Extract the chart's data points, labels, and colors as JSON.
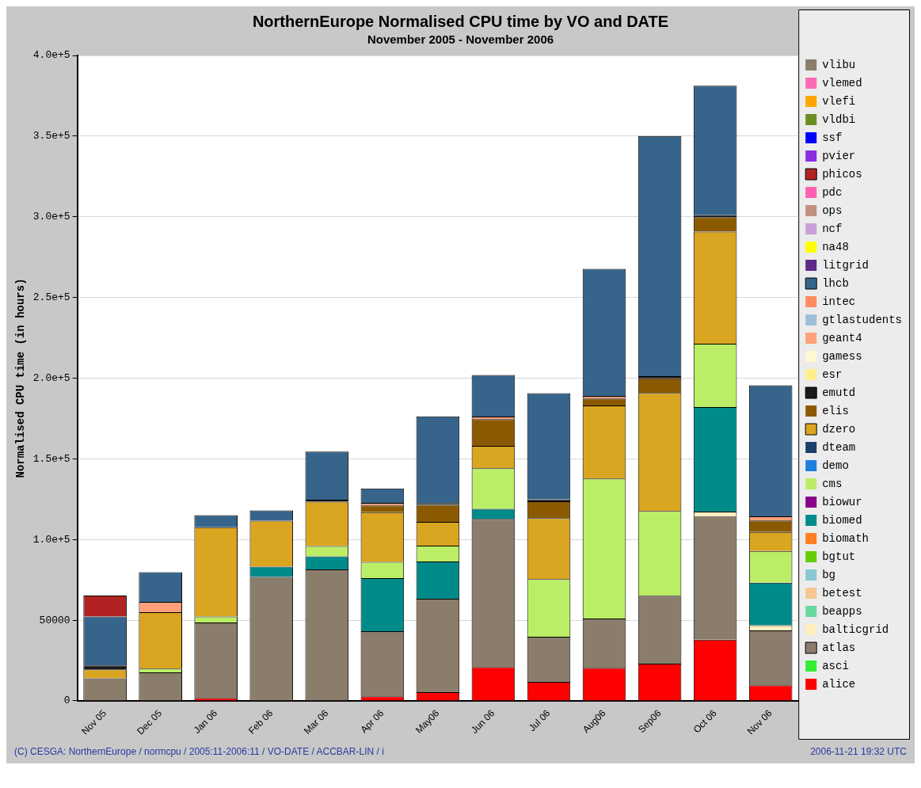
{
  "chart_data": {
    "type": "bar",
    "stacked": true,
    "title": "NorthernEurope Normalised CPU time by VO and DATE",
    "subtitle": "November 2005 - November 2006",
    "ylabel": "Normalised CPU time (in hours)",
    "categories": [
      "Nov 05",
      "Dec 05",
      "Jan 06",
      "Feb 06",
      "Mar 06",
      "Apr 06",
      "May06",
      "Jun 06",
      "Jul 06",
      "Aug06",
      "Sep06",
      "Oct 06",
      "Nov 06"
    ],
    "ylim": [
      0,
      400000
    ],
    "yticks": [
      0,
      50000,
      {
        "value": 100000,
        "label": "1.0e+5"
      },
      {
        "value": 150000,
        "label": "1.5e+5"
      },
      {
        "value": 200000,
        "label": "2.0e+5"
      },
      {
        "value": 250000,
        "label": "2.5e+5"
      },
      {
        "value": 300000,
        "label": "3.0e+5"
      },
      {
        "value": 350000,
        "label": "3.5e+5"
      },
      {
        "value": 400000,
        "label": "4.0e+5"
      }
    ],
    "grid": "y",
    "legend": "right",
    "annotations": [
      "(C) CESGA: NorthernEurope / normcpu / 2005:11-2006:11 / VO-DATE / ACCBAR-LIN / i",
      "2006-11-21 19:32 UTC"
    ],
    "series": [
      {
        "name": "alice",
        "color": "#ff0000",
        "values": [
          0,
          0,
          1800,
          0,
          0,
          2800,
          5400,
          21000,
          11700,
          20400,
          23000,
          37900,
          9700
        ]
      },
      {
        "name": "asci",
        "color": "#33ee33",
        "values": [
          0,
          0,
          0,
          0,
          0,
          0,
          0,
          0,
          0,
          0,
          0,
          0,
          0
        ]
      },
      {
        "name": "atlas",
        "color": "#8b7d6b",
        "values": [
          14000,
          17600,
          46700,
          76800,
          81500,
          40400,
          57900,
          91700,
          28000,
          30600,
          42100,
          76300,
          34000
        ]
      },
      {
        "name": "balticgrid",
        "color": "#ffefc0",
        "values": [
          0,
          0,
          0,
          0,
          0,
          0,
          0,
          0,
          0,
          0,
          0,
          3100,
          3100
        ]
      },
      {
        "name": "beapps",
        "color": "#66d9a0",
        "values": [
          0,
          0,
          0,
          0,
          0,
          0,
          0,
          0,
          0,
          0,
          0,
          0,
          0
        ]
      },
      {
        "name": "betest",
        "color": "#f5c890",
        "values": [
          0,
          0,
          0,
          0,
          0,
          0,
          0,
          0,
          0,
          0,
          0,
          0,
          0
        ]
      },
      {
        "name": "bg",
        "color": "#88c8d0",
        "values": [
          0,
          0,
          0,
          0,
          0,
          0,
          0,
          0,
          0,
          0,
          0,
          0,
          0
        ]
      },
      {
        "name": "bgtut",
        "color": "#66cc00",
        "values": [
          0,
          0,
          0,
          0,
          0,
          0,
          0,
          0,
          0,
          0,
          0,
          0,
          0
        ]
      },
      {
        "name": "biomath",
        "color": "#ff7f20",
        "values": [
          0,
          0,
          0,
          0,
          0,
          0,
          0,
          0,
          0,
          0,
          0,
          0,
          0
        ]
      },
      {
        "name": "biomed",
        "color": "#008b8b",
        "values": [
          0,
          0,
          0,
          6400,
          8000,
          32900,
          23100,
          6300,
          0,
          0,
          0,
          64800,
          26400
        ]
      },
      {
        "name": "biowur",
        "color": "#8b008b",
        "values": [
          0,
          0,
          0,
          0,
          0,
          0,
          0,
          0,
          0,
          0,
          0,
          0,
          0
        ]
      },
      {
        "name": "cms",
        "color": "#bbee66",
        "values": [
          0,
          2400,
          3800,
          0,
          6400,
          10000,
          9800,
          25200,
          35700,
          86800,
          52500,
          39200,
          19600
        ]
      },
      {
        "name": "demo",
        "color": "#1e7fdf",
        "values": [
          0,
          0,
          0,
          0,
          0,
          0,
          0,
          0,
          0,
          0,
          0,
          0,
          0
        ]
      },
      {
        "name": "dteam",
        "color": "#1a3f6a",
        "values": [
          0,
          0,
          0,
          0,
          0,
          0,
          0,
          0,
          0,
          0,
          0,
          0,
          0
        ]
      },
      {
        "name": "dzero",
        "color": "#daa520",
        "values": [
          5500,
          34900,
          55300,
          28400,
          27500,
          30800,
          14700,
          13800,
          37800,
          45200,
          73200,
          69500,
          11800
        ]
      },
      {
        "name": "elis",
        "color": "#8b5a00",
        "values": [
          0,
          0,
          0,
          0,
          0,
          4200,
          10500,
          16600,
          10500,
          4400,
          9100,
          8900,
          7100
        ]
      },
      {
        "name": "emutd",
        "color": "#1a1a1a",
        "values": [
          2400,
          0,
          0,
          0,
          1300,
          0,
          1200,
          0,
          1200,
          0,
          1300,
          1300,
          0
        ]
      },
      {
        "name": "esr",
        "color": "#ffef8a",
        "values": [
          0,
          0,
          0,
          0,
          0,
          0,
          0,
          0,
          0,
          0,
          0,
          0,
          0
        ]
      },
      {
        "name": "gamess",
        "color": "#fff8d0",
        "values": [
          0,
          0,
          0,
          0,
          0,
          0,
          0,
          0,
          0,
          0,
          0,
          0,
          0
        ]
      },
      {
        "name": "geant4",
        "color": "#ffa07a",
        "values": [
          0,
          6400,
          0,
          0,
          0,
          1600,
          0,
          1600,
          0,
          1600,
          0,
          0,
          2600
        ]
      },
      {
        "name": "gtlastudents",
        "color": "#9cc0d8",
        "values": [
          0,
          0,
          0,
          0,
          0,
          0,
          0,
          0,
          0,
          0,
          0,
          0,
          0
        ]
      },
      {
        "name": "intec",
        "color": "#ff8c60",
        "values": [
          0,
          0,
          0,
          0,
          0,
          0,
          0,
          0,
          0,
          0,
          0,
          0,
          0
        ]
      },
      {
        "name": "lhcb",
        "color": "#36648b",
        "values": [
          30400,
          18400,
          7500,
          6400,
          29800,
          8900,
          53700,
          25700,
          65800,
          78700,
          148900,
          80200,
          81300
        ]
      },
      {
        "name": "litgrid",
        "color": "#5e2a86",
        "values": [
          0,
          0,
          0,
          0,
          0,
          0,
          0,
          0,
          0,
          0,
          0,
          0,
          0
        ]
      },
      {
        "name": "na48",
        "color": "#ffff00",
        "values": [
          0,
          0,
          0,
          0,
          0,
          0,
          0,
          0,
          0,
          0,
          0,
          0,
          0
        ]
      },
      {
        "name": "ncf",
        "color": "#c8a0d8",
        "values": [
          0,
          0,
          0,
          0,
          0,
          0,
          0,
          0,
          0,
          0,
          0,
          0,
          0
        ]
      },
      {
        "name": "ops",
        "color": "#c09080",
        "values": [
          0,
          0,
          0,
          0,
          0,
          0,
          0,
          0,
          0,
          0,
          0,
          0,
          0
        ]
      },
      {
        "name": "pdc",
        "color": "#ff60b0",
        "values": [
          0,
          0,
          0,
          0,
          0,
          0,
          0,
          0,
          0,
          0,
          0,
          0,
          0
        ]
      },
      {
        "name": "phicos",
        "color": "#b22222",
        "values": [
          12900,
          0,
          0,
          0,
          0,
          0,
          0,
          0,
          0,
          0,
          0,
          0,
          0
        ]
      },
      {
        "name": "pvier",
        "color": "#8a2be2",
        "values": [
          0,
          0,
          0,
          0,
          0,
          0,
          0,
          0,
          0,
          0,
          0,
          0,
          0
        ]
      },
      {
        "name": "ssf",
        "color": "#0000ff",
        "values": [
          0,
          0,
          0,
          0,
          0,
          0,
          0,
          0,
          0,
          0,
          0,
          0,
          0
        ]
      },
      {
        "name": "vldbi",
        "color": "#6b8e23",
        "values": [
          0,
          0,
          0,
          0,
          0,
          0,
          0,
          0,
          0,
          0,
          0,
          0,
          0
        ]
      },
      {
        "name": "vlefi",
        "color": "#ffa500",
        "values": [
          0,
          0,
          0,
          0,
          0,
          0,
          0,
          0,
          0,
          0,
          0,
          0,
          0
        ]
      },
      {
        "name": "vlemed",
        "color": "#ff69b4",
        "values": [
          0,
          0,
          0,
          0,
          0,
          0,
          0,
          0,
          0,
          0,
          0,
          0,
          0
        ]
      },
      {
        "name": "vlibu",
        "color": "#8b7d6b",
        "values": [
          0,
          0,
          0,
          0,
          0,
          0,
          0,
          0,
          0,
          0,
          0,
          0,
          0
        ]
      }
    ]
  }
}
